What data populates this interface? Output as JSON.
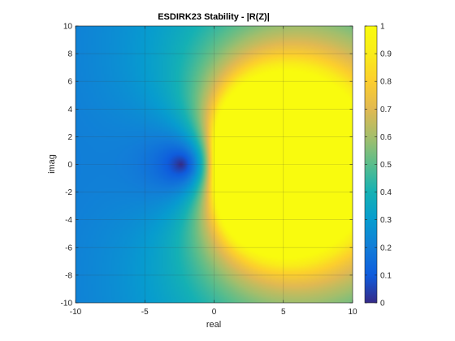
{
  "chart_data": {
    "type": "heatmap",
    "title": "ESDIRK23 Stability - |R(Z)|",
    "xlabel": "real",
    "ylabel": "imag",
    "xlim": [
      -10,
      10
    ],
    "ylim": [
      -10,
      10
    ],
    "x_ticks": [
      -10,
      -5,
      0,
      5,
      10
    ],
    "x_tick_labels": [
      "-10",
      "-5",
      "0",
      "5",
      "10"
    ],
    "y_ticks": [
      -10,
      -8,
      -6,
      -4,
      -2,
      0,
      2,
      4,
      6,
      8,
      10
    ],
    "y_tick_labels": [
      "-10",
      "-8",
      "-6",
      "-4",
      "-2",
      "0",
      "2",
      "4",
      "6",
      "8",
      "10"
    ],
    "colorbar": {
      "colormap": "parula",
      "range": [
        0,
        1
      ],
      "ticks": [
        0,
        0.1,
        0.2,
        0.3,
        0.4,
        0.5,
        0.6,
        0.7,
        0.8,
        0.9,
        1
      ],
      "tick_labels": [
        "0",
        "0.1",
        "0.2",
        "0.3",
        "0.4",
        "0.5",
        "0.6",
        "0.7",
        "0.8",
        "0.9",
        "1"
      ]
    },
    "values_clipped_at": 1,
    "min_region": {
      "real": -2.6,
      "imag": 0
    },
    "grid": true
  }
}
